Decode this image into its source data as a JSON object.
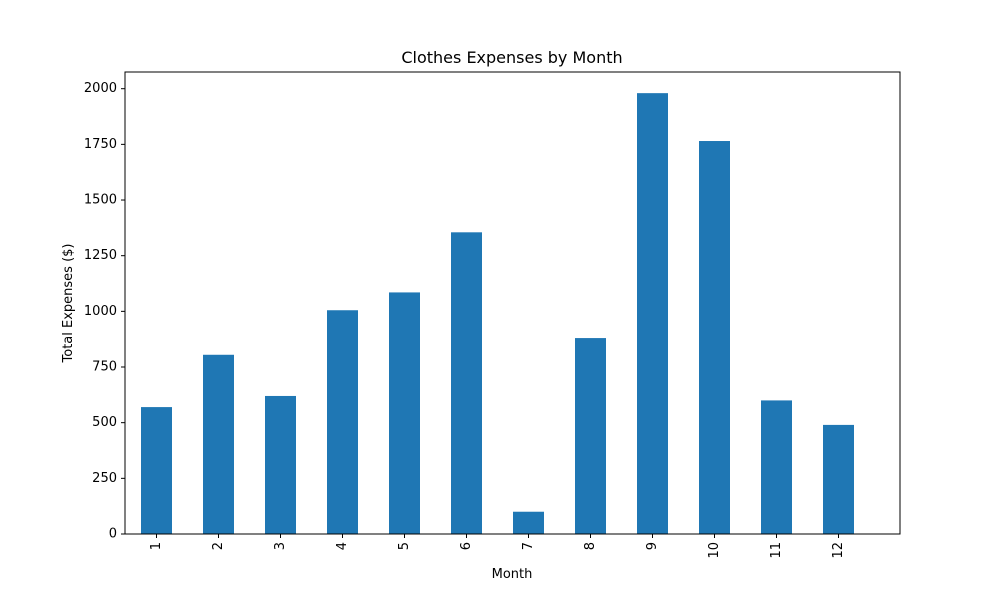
{
  "chart_data": {
    "type": "bar",
    "title": "Clothes Expenses by Month",
    "xlabel": "Month",
    "ylabel": "Total Expenses ($)",
    "categories": [
      "1",
      "2",
      "3",
      "4",
      "5",
      "6",
      "7",
      "8",
      "9",
      "10",
      "11",
      "12"
    ],
    "values": [
      570,
      805,
      620,
      1005,
      1085,
      1355,
      100,
      880,
      1980,
      1765,
      600,
      490
    ],
    "ylim": [
      0,
      2075
    ],
    "yticks": [
      0,
      250,
      500,
      750,
      1000,
      1250,
      1500,
      1750,
      2000
    ],
    "ytick_labels": [
      "0",
      "250",
      "500",
      "750",
      "1000",
      "1250",
      "1500",
      "1750",
      "2000"
    ],
    "x_tick_rotation": "vertical",
    "grid": false,
    "legend": "none",
    "colors": {
      "bar": "#1f77b4",
      "axes": "#000000",
      "background": "#ffffff"
    }
  }
}
